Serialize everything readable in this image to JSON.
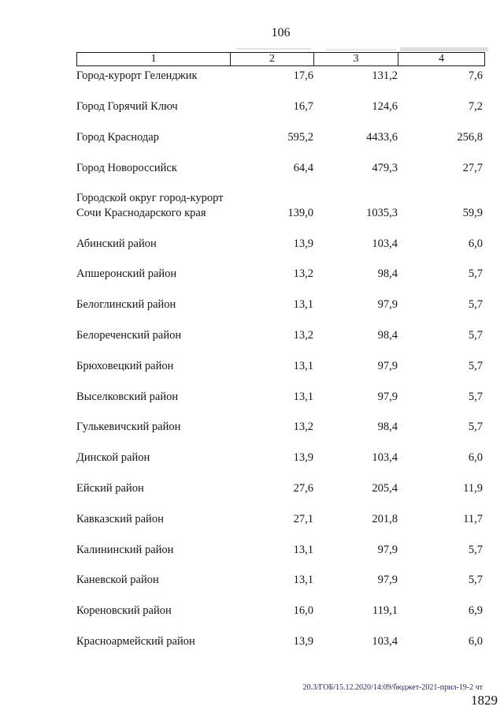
{
  "page": {
    "number": "106",
    "footer_code": "20.3/ГОБ/15.12.2020/14:09/бюджет-2021-прил-19-2 чт",
    "footer_page": "1829"
  },
  "table": {
    "headers": [
      "1",
      "2",
      "3",
      "4"
    ],
    "rows": [
      {
        "name": "Город-курорт Геленджик",
        "c2": "17,6",
        "c3": "131,2",
        "c4": "7,6"
      },
      {
        "name": "Город Горячий Ключ",
        "c2": "16,7",
        "c3": "124,6",
        "c4": "7,2"
      },
      {
        "name": "Город Краснодар",
        "c2": "595,2",
        "c3": "4433,6",
        "c4": "256,8"
      },
      {
        "name": "Город Новороссийск",
        "c2": "64,4",
        "c3": "479,3",
        "c4": "27,7"
      },
      {
        "name": "Городской округ город-курорт Сочи Краснодарского края",
        "c2": "139,0",
        "c3": "1035,3",
        "c4": "59,9"
      },
      {
        "name": "Абинский район",
        "c2": "13,9",
        "c3": "103,4",
        "c4": "6,0"
      },
      {
        "name": "Апшеронский район",
        "c2": "13,2",
        "c3": "98,4",
        "c4": "5,7"
      },
      {
        "name": "Белоглинский район",
        "c2": "13,1",
        "c3": "97,9",
        "c4": "5,7"
      },
      {
        "name": "Белореченский район",
        "c2": "13,2",
        "c3": "98,4",
        "c4": "5,7"
      },
      {
        "name": "Брюховецкий район",
        "c2": "13,1",
        "c3": "97,9",
        "c4": "5,7"
      },
      {
        "name": "Выселковский район",
        "c2": "13,1",
        "c3": "97,9",
        "c4": "5,7"
      },
      {
        "name": "Гулькевичский район",
        "c2": "13,2",
        "c3": "98,4",
        "c4": "5,7"
      },
      {
        "name": "Динской район",
        "c2": "13,9",
        "c3": "103,4",
        "c4": "6,0"
      },
      {
        "name": "Ейский район",
        "c2": "27,6",
        "c3": "205,4",
        "c4": "11,9"
      },
      {
        "name": "Кавказский район",
        "c2": "27,1",
        "c3": "201,8",
        "c4": "11,7"
      },
      {
        "name": "Калининский район",
        "c2": "13,1",
        "c3": "97,9",
        "c4": "5,7"
      },
      {
        "name": "Каневской район",
        "c2": "13,1",
        "c3": "97,9",
        "c4": "5,7"
      },
      {
        "name": "Кореновский район",
        "c2": "16,0",
        "c3": "119,1",
        "c4": "6,9"
      },
      {
        "name": "Красноармейский район",
        "c2": "13,9",
        "c3": "103,4",
        "c4": "6,0"
      }
    ]
  }
}
